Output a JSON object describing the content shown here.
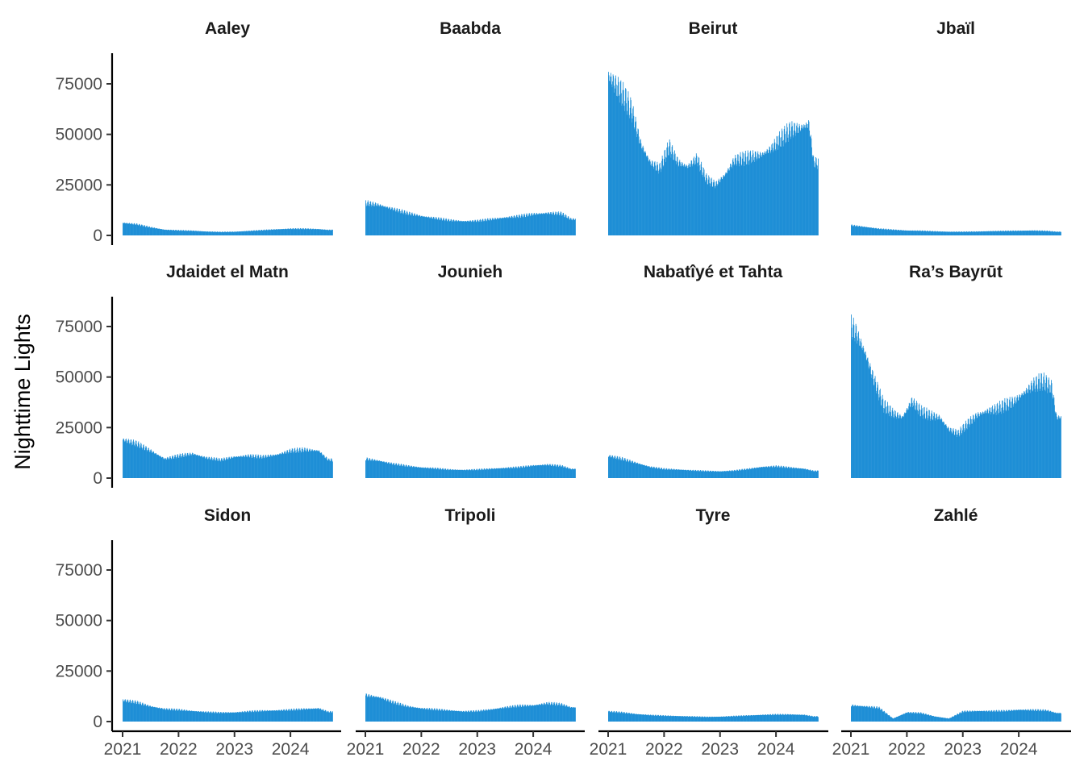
{
  "chart_data": {
    "type": "bar",
    "layout": "facet-grid",
    "facet_columns": 4,
    "facet_rows": 3,
    "ylabel": "Nighttime Lights",
    "xlabel": "",
    "ylim": [
      0,
      90000
    ],
    "y_ticks": [
      0,
      25000,
      50000,
      75000
    ],
    "y_tick_labels": [
      "0",
      "25000",
      "50000",
      "75000"
    ],
    "x_ticks": [
      "2021-01-01",
      "2022-01-01",
      "2023-01-01",
      "2024-01-01"
    ],
    "x_tick_labels": [
      "2021",
      "2022",
      "2023",
      "2024"
    ],
    "x_range": [
      "2021-01-01",
      "2024-09-30"
    ],
    "bar_color": "#1f8fd6",
    "series": [
      {
        "name": "Aaley",
        "x": [
          "2021-01",
          "2021-04",
          "2021-07",
          "2021-10",
          "2022-01",
          "2022-04",
          "2022-07",
          "2022-10",
          "2023-01",
          "2023-04",
          "2023-07",
          "2023-10",
          "2024-01",
          "2024-04",
          "2024-07",
          "2024-09"
        ],
        "values": [
          6200,
          5500,
          4000,
          2800,
          2500,
          2300,
          1900,
          1700,
          1800,
          2200,
          2600,
          3000,
          3300,
          3300,
          3100,
          2700
        ]
      },
      {
        "name": "Baabda",
        "x": [
          "2021-01",
          "2021-04",
          "2021-07",
          "2021-10",
          "2022-01",
          "2022-04",
          "2022-07",
          "2022-10",
          "2023-01",
          "2023-04",
          "2023-07",
          "2023-10",
          "2024-01",
          "2024-04",
          "2024-07",
          "2024-09"
        ],
        "values": [
          16000,
          15000,
          13000,
          11000,
          9500,
          8500,
          7500,
          7000,
          7200,
          8000,
          8800,
          9500,
          10500,
          11000,
          10800,
          8000
        ]
      },
      {
        "name": "Beirut",
        "x": [
          "2021-01",
          "2021-02",
          "2021-04",
          "2021-06",
          "2021-08",
          "2021-10",
          "2021-12",
          "2022-02",
          "2022-04",
          "2022-06",
          "2022-08",
          "2022-10",
          "2022-12",
          "2023-02",
          "2023-04",
          "2023-06",
          "2023-08",
          "2023-10",
          "2023-12",
          "2024-02",
          "2024-04",
          "2024-06",
          "2024-08",
          "2024-09"
        ],
        "values": [
          79000,
          76000,
          70000,
          62000,
          45000,
          36000,
          33000,
          44000,
          36000,
          34000,
          38000,
          28000,
          25000,
          30000,
          37000,
          38000,
          39000,
          40000,
          43000,
          48000,
          52000,
          53000,
          55000,
          36000
        ]
      },
      {
        "name": "Jbaïl",
        "x": [
          "2021-01",
          "2021-04",
          "2021-07",
          "2021-10",
          "2022-01",
          "2022-04",
          "2022-07",
          "2022-10",
          "2023-01",
          "2023-04",
          "2023-07",
          "2023-10",
          "2024-01",
          "2024-04",
          "2024-07",
          "2024-09"
        ],
        "values": [
          5000,
          4200,
          3300,
          2800,
          2400,
          2300,
          2000,
          1800,
          1800,
          1900,
          2100,
          2200,
          2300,
          2400,
          2200,
          1800
        ]
      },
      {
        "name": "Jdaidet el Matn",
        "x": [
          "2021-01",
          "2021-04",
          "2021-07",
          "2021-10",
          "2022-01",
          "2022-04",
          "2022-07",
          "2022-10",
          "2023-01",
          "2023-04",
          "2023-07",
          "2023-10",
          "2024-01",
          "2024-04",
          "2024-07",
          "2024-09"
        ],
        "values": [
          19000,
          17000,
          13500,
          9500,
          11000,
          12000,
          10000,
          9000,
          10500,
          11000,
          10500,
          11500,
          13500,
          14000,
          13500,
          9000
        ]
      },
      {
        "name": "Jounieh",
        "x": [
          "2021-01",
          "2021-04",
          "2021-07",
          "2021-10",
          "2022-01",
          "2022-04",
          "2022-07",
          "2022-10",
          "2023-01",
          "2023-04",
          "2023-07",
          "2023-10",
          "2024-01",
          "2024-04",
          "2024-07",
          "2024-09"
        ],
        "values": [
          9500,
          8500,
          7000,
          6000,
          5200,
          4800,
          4200,
          4000,
          4200,
          4600,
          5000,
          5400,
          6200,
          6600,
          6000,
          4500
        ]
      },
      {
        "name": "Nabatîyé et Tahta",
        "x": [
          "2021-01",
          "2021-04",
          "2021-07",
          "2021-10",
          "2022-01",
          "2022-04",
          "2022-07",
          "2022-10",
          "2023-01",
          "2023-04",
          "2023-07",
          "2023-10",
          "2024-01",
          "2024-04",
          "2024-07",
          "2024-09"
        ],
        "values": [
          11000,
          9500,
          7500,
          5500,
          4500,
          4200,
          3800,
          3500,
          3300,
          3700,
          4500,
          5500,
          5800,
          5200,
          4600,
          3500
        ]
      },
      {
        "name": "Ra’s Bayrūt",
        "x": [
          "2021-01",
          "2021-02",
          "2021-04",
          "2021-06",
          "2021-08",
          "2021-10",
          "2021-12",
          "2022-02",
          "2022-04",
          "2022-06",
          "2022-08",
          "2022-10",
          "2022-12",
          "2023-02",
          "2023-04",
          "2023-06",
          "2023-08",
          "2023-10",
          "2023-12",
          "2024-02",
          "2024-04",
          "2024-06",
          "2024-08",
          "2024-09"
        ],
        "values": [
          75000,
          72000,
          62000,
          48000,
          36000,
          32000,
          30000,
          38000,
          33000,
          31000,
          30000,
          24000,
          22000,
          27000,
          31000,
          33000,
          34000,
          36000,
          38000,
          42000,
          46000,
          48000,
          45000,
          30000
        ]
      },
      {
        "name": "Sidon",
        "x": [
          "2021-01",
          "2021-04",
          "2021-07",
          "2021-10",
          "2022-01",
          "2022-04",
          "2022-07",
          "2022-10",
          "2023-01",
          "2023-04",
          "2023-07",
          "2023-10",
          "2024-01",
          "2024-04",
          "2024-07",
          "2024-09"
        ],
        "values": [
          10500,
          9500,
          7500,
          6200,
          5800,
          5200,
          4700,
          4400,
          4500,
          5000,
          5300,
          5500,
          5800,
          6200,
          6500,
          4800
        ]
      },
      {
        "name": "Tripoli",
        "x": [
          "2021-01",
          "2021-04",
          "2021-07",
          "2021-10",
          "2022-01",
          "2022-04",
          "2022-07",
          "2022-10",
          "2023-01",
          "2023-04",
          "2023-07",
          "2023-10",
          "2024-01",
          "2024-04",
          "2024-07",
          "2024-09"
        ],
        "values": [
          13000,
          12000,
          9500,
          7500,
          6500,
          6000,
          5500,
          5000,
          5200,
          6000,
          7000,
          7800,
          8000,
          9000,
          8500,
          7000
        ]
      },
      {
        "name": "Tyre",
        "x": [
          "2021-01",
          "2021-04",
          "2021-07",
          "2021-10",
          "2022-01",
          "2022-04",
          "2022-07",
          "2022-10",
          "2023-01",
          "2023-04",
          "2023-07",
          "2023-10",
          "2024-01",
          "2024-04",
          "2024-07",
          "2024-09"
        ],
        "values": [
          5000,
          4500,
          3700,
          3200,
          2900,
          2700,
          2500,
          2300,
          2400,
          2700,
          3000,
          3300,
          3500,
          3500,
          3300,
          2500
        ]
      },
      {
        "name": "Zahlé",
        "x": [
          "2021-01",
          "2021-04",
          "2021-07",
          "2021-10",
          "2022-01",
          "2022-04",
          "2022-07",
          "2022-10",
          "2023-01",
          "2023-04",
          "2023-07",
          "2023-10",
          "2024-01",
          "2024-04",
          "2024-07",
          "2024-09"
        ],
        "values": [
          8000,
          7500,
          6800,
          1500,
          4500,
          4200,
          2500,
          1500,
          5000,
          5200,
          5200,
          5300,
          5800,
          5700,
          5500,
          4200
        ]
      }
    ]
  }
}
